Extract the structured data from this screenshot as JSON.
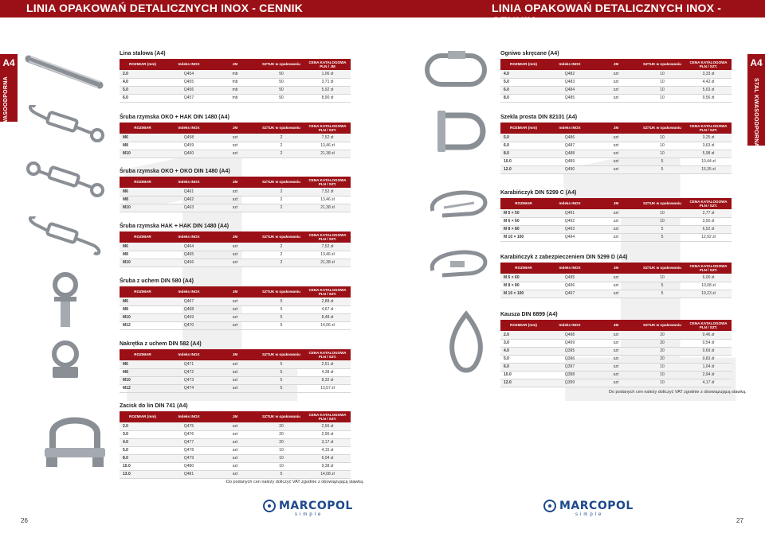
{
  "header": {
    "title_left": "LINIA OPAKOWAŃ DETALICZNYCH INOX - CENNIK",
    "title_right": "LINIA OPAKOWAŃ DETALICZNYCH INOX - CENNIK"
  },
  "side": {
    "a4": "A4",
    "label": "STAL KWASOODPORNA"
  },
  "watermark": {
    "left": "1",
    "right": "1"
  },
  "colors": {
    "accent": "#9a1016",
    "brand": "#1e4a8c"
  },
  "columns": [
    "ROZMIAR (mm)",
    "Indeks INOX",
    "JM",
    "SZTUK w opakowaniu",
    "CENA KATALOGOWA PLN / SZT."
  ],
  "columns_alt": [
    "ROZMIAR",
    "Indeks INOX",
    "JM",
    "SZTUK w opakowaniu",
    "CENA KATALOGOWA PLN / SZT."
  ],
  "columns_lina": [
    "ROZMIAR (mm)",
    "Indeks INOX",
    "JM",
    "SZTUK w opakowaniu",
    "CENA KATALOGOWA PLN / JM"
  ],
  "sections_left": [
    {
      "title": "Lina stalowa (A4)",
      "hdr": "lina",
      "rows": [
        [
          "2.0",
          "Q454",
          "mb",
          "50",
          "1,06 zł"
        ],
        [
          "4.0",
          "Q455",
          "mb",
          "50",
          "3,71 zł"
        ],
        [
          "5.0",
          "Q456",
          "mb",
          "50",
          "5,92 zł"
        ],
        [
          "6.0",
          "Q457",
          "mb",
          "50",
          "8,90 zł"
        ]
      ]
    },
    {
      "title": "Śruba rzymska OKO + HAK DIN 1480 (A4)",
      "hdr": "alt",
      "rows": [
        [
          "M6",
          "Q458",
          "szt",
          "2",
          "7,52 zł"
        ],
        [
          "M8",
          "Q459",
          "szt",
          "2",
          "13,46 zł"
        ],
        [
          "M10",
          "Q460",
          "szt",
          "2",
          "21,38 zł"
        ]
      ]
    },
    {
      "title": "Śruba rzymska OKO + OKO DIN 1480 (A4)",
      "hdr": "alt",
      "rows": [
        [
          "M6",
          "Q461",
          "szt",
          "2",
          "7,52 zł"
        ],
        [
          "M8",
          "Q462",
          "szt",
          "2",
          "13,46 zł"
        ],
        [
          "M10",
          "Q463",
          "szt",
          "2",
          "21,38 zł"
        ]
      ]
    },
    {
      "title": "Śruba rzymska HAK + HAK DIN 1480 (A4)",
      "hdr": "alt",
      "rows": [
        [
          "M6",
          "Q464",
          "szt",
          "2",
          "7,52 zł"
        ],
        [
          "M8",
          "Q465",
          "szt",
          "2",
          "13,46 zł"
        ],
        [
          "M10",
          "Q466",
          "szt",
          "2",
          "21,38 zł"
        ]
      ]
    },
    {
      "title": "Śruba z uchem DIN 580 (A4)",
      "hdr": "alt",
      "rows": [
        [
          "M6",
          "Q467",
          "szt",
          "5",
          "2,88 zł"
        ],
        [
          "M8",
          "Q468",
          "szt",
          "5",
          "4,67 zł"
        ],
        [
          "M10",
          "Q469",
          "szt",
          "5",
          "8,48 zł"
        ],
        [
          "M12",
          "Q470",
          "szt",
          "5",
          "14,06 zł"
        ]
      ]
    },
    {
      "title": "Nakrętka z uchem DIN 582 (A4)",
      "hdr": "alt",
      "rows": [
        [
          "M6",
          "Q471",
          "szt",
          "5",
          "2,51 zł"
        ],
        [
          "M8",
          "Q472",
          "szt",
          "5",
          "4,38 zł"
        ],
        [
          "M10",
          "Q473",
          "szt",
          "5",
          "8,32 zł"
        ],
        [
          "M12",
          "Q474",
          "szt",
          "5",
          "13,57 zł"
        ]
      ]
    },
    {
      "title": "Zacisk do lin DIN 741 (A4)",
      "hdr": "std",
      "rows": [
        [
          "2.0",
          "Q475",
          "szt",
          "20",
          "2,56 zł"
        ],
        [
          "3.0",
          "Q476",
          "szt",
          "20",
          "2,90 zł"
        ],
        [
          "4.0",
          "Q477",
          "szt",
          "20",
          "3,17 zł"
        ],
        [
          "5.0",
          "Q478",
          "szt",
          "10",
          "4,15 zł"
        ],
        [
          "8.0",
          "Q479",
          "szt",
          "10",
          "6,04 zł"
        ],
        [
          "10.0",
          "Q480",
          "szt",
          "10",
          "9,38 zł"
        ],
        [
          "13.0",
          "Q481",
          "szt",
          "5",
          "14,08 zł"
        ]
      ]
    }
  ],
  "sections_right": [
    {
      "title": "Ogniwo skręcane (A4)",
      "hdr": "std",
      "rows": [
        [
          "4.0",
          "Q482",
          "szt",
          "10",
          "3,33 zł"
        ],
        [
          "5.0",
          "Q483",
          "szt",
          "10",
          "4,42 zł"
        ],
        [
          "6.0",
          "Q484",
          "szt",
          "10",
          "5,63 zł"
        ],
        [
          "8.0",
          "Q485",
          "szt",
          "10",
          "9,56 zł"
        ]
      ]
    },
    {
      "title": "Szekla prosta DIN 82101 (A4)",
      "hdr": "std",
      "rows": [
        [
          "5.0",
          "Q486",
          "szt",
          "10",
          "3,25 zł"
        ],
        [
          "6.0",
          "Q487",
          "szt",
          "10",
          "3,63 zł"
        ],
        [
          "8.0",
          "Q488",
          "szt",
          "10",
          "5,98 zł"
        ],
        [
          "10.0",
          "Q489",
          "szt",
          "5",
          "10,44 zł"
        ],
        [
          "12.0",
          "Q490",
          "szt",
          "5",
          "15,35 zł"
        ]
      ]
    },
    {
      "title": "Karabińczyk DIN 5299 C (A4)",
      "hdr": "alt",
      "rows": [
        [
          "M 5 × 50",
          "Q491",
          "szt",
          "10",
          "2,77 zł"
        ],
        [
          "M 6 × 60",
          "Q492",
          "szt",
          "10",
          "3,50 zł"
        ],
        [
          "M 8 × 80",
          "Q493",
          "szt",
          "5",
          "6,52 zł"
        ],
        [
          "M 10 × 100",
          "Q494",
          "szt",
          "5",
          "12,92 zł"
        ]
      ]
    },
    {
      "title": "Karabińczyk z zabezpieczeniem DIN 5299 D (A4)",
      "hdr": "alt",
      "rows": [
        [
          "M 6 × 60",
          "Q495",
          "szt",
          "10",
          "6,00 zł"
        ],
        [
          "M 8 × 80",
          "Q496",
          "szt",
          "5",
          "10,08 zł"
        ],
        [
          "M 10 × 100",
          "Q497",
          "szt",
          "5",
          "19,23 zł"
        ]
      ]
    },
    {
      "title": "Kausza DIN 6899 (A4)",
      "hdr": "std",
      "rows": [
        [
          "2.0",
          "Q498",
          "szt",
          "20",
          "0,46 zł"
        ],
        [
          "3.0",
          "Q499",
          "szt",
          "20",
          "0,54 zł"
        ],
        [
          "4.0",
          "Q395",
          "szt",
          "20",
          "0,69 zł"
        ],
        [
          "5.0",
          "Q396",
          "szt",
          "20",
          "0,83 zł"
        ],
        [
          "6.0",
          "Q397",
          "szt",
          "10",
          "1,04 zł"
        ],
        [
          "10.0",
          "Q398",
          "szt",
          "10",
          "2,94 zł"
        ],
        [
          "12.0",
          "Q399",
          "szt",
          "10",
          "4,17 zł"
        ]
      ]
    }
  ],
  "notes": {
    "left": "Do podanych cen należy doliczyć VAT zgodnie z obowiązującą stawką.",
    "right": "Do podanych cen należy doliczyć VAT zgodnie z obowiązującą stawką."
  },
  "footer": {
    "brand": "MARCOPOL",
    "tagline": "simple",
    "page_left": "26",
    "page_right": "27"
  }
}
